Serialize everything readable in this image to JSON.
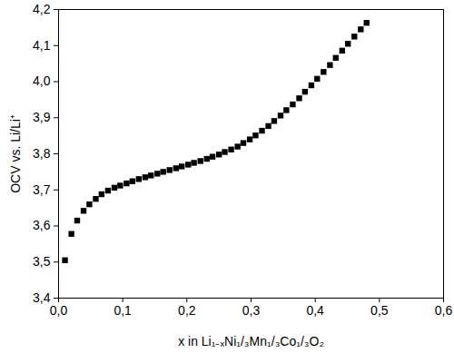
{
  "chart_data": {
    "type": "scatter",
    "x_label": "x in Li₁₋ₓNi₁/₃Mn₁/₃Co₁/₃O₂",
    "y_label": "OCV vs. Li/Li⁺",
    "marker": "square",
    "color": "#000000",
    "grid": false,
    "x": [
      0.01,
      0.02,
      0.029,
      0.039,
      0.048,
      0.058,
      0.067,
      0.077,
      0.087,
      0.096,
      0.106,
      0.115,
      0.125,
      0.135,
      0.144,
      0.154,
      0.163,
      0.173,
      0.183,
      0.192,
      0.202,
      0.211,
      0.221,
      0.231,
      0.24,
      0.25,
      0.259,
      0.269,
      0.279,
      0.288,
      0.298,
      0.307,
      0.317,
      0.327,
      0.336,
      0.346,
      0.355,
      0.365,
      0.375,
      0.384,
      0.394,
      0.403,
      0.413,
      0.423,
      0.432,
      0.442,
      0.451,
      0.461,
      0.471,
      0.48
    ],
    "values": [
      3.505,
      3.578,
      3.615,
      3.642,
      3.66,
      3.675,
      3.688,
      3.698,
      3.706,
      3.712,
      3.718,
      3.724,
      3.73,
      3.735,
      3.74,
      3.745,
      3.75,
      3.755,
      3.76,
      3.765,
      3.77,
      3.775,
      3.78,
      3.786,
      3.792,
      3.798,
      3.805,
      3.812,
      3.82,
      3.83,
      3.84,
      3.851,
      3.864,
      3.877,
      3.891,
      3.906,
      3.921,
      3.937,
      3.954,
      3.972,
      3.99,
      4.008,
      4.027,
      4.046,
      4.066,
      4.086,
      4.105,
      4.125,
      4.145,
      4.163
    ],
    "xlim": [
      0,
      0.6
    ],
    "xticks": [
      {
        "value": 0,
        "label": "0,0"
      },
      {
        "value": 0.1,
        "label": "0,1"
      },
      {
        "value": 0.2,
        "label": "0,2"
      },
      {
        "value": 0.3,
        "label": "0,3"
      },
      {
        "value": 0.4,
        "label": "0,4"
      },
      {
        "value": 0.5,
        "label": "0,5"
      },
      {
        "value": 0.6,
        "label": "0,6"
      }
    ],
    "ylim": [
      3.4,
      4.2
    ],
    "yticks": [
      {
        "value": 3.4,
        "label": "3,4"
      },
      {
        "value": 3.5,
        "label": "3,5"
      },
      {
        "value": 3.6,
        "label": "3,6"
      },
      {
        "value": 3.7,
        "label": "3,7"
      },
      {
        "value": 3.8,
        "label": "3,8"
      },
      {
        "value": 3.9,
        "label": "3,9"
      },
      {
        "value": 4.0,
        "label": "4,0"
      },
      {
        "value": 4.1,
        "label": "4,1"
      },
      {
        "value": 4.2,
        "label": "4,2"
      }
    ]
  }
}
